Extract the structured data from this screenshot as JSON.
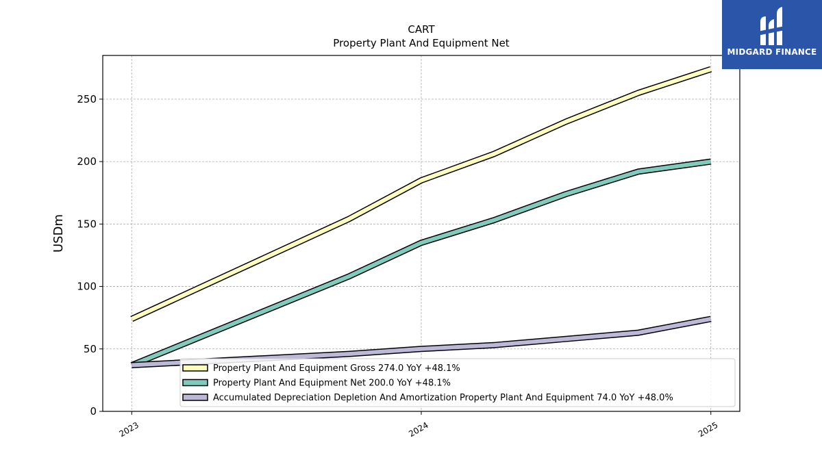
{
  "chart_data": {
    "type": "line",
    "title": "CART",
    "subtitle": "Property Plant And Equipment Net",
    "ylabel": "USDm",
    "xlabel": "",
    "ylim": [
      0,
      285
    ],
    "xlim": [
      2022.9,
      2025.1
    ],
    "yticks": [
      0,
      50,
      100,
      150,
      200,
      250
    ],
    "xticks": [
      {
        "value": 2023,
        "label": "2023"
      },
      {
        "value": 2024,
        "label": "2024"
      },
      {
        "value": 2025,
        "label": "2025"
      }
    ],
    "grid": true,
    "legend_position": "lower-right",
    "series": [
      {
        "name": "Property Plant And Equipment Gross",
        "legend": "Property Plant And Equipment Gross  274.0 YoY +48.1%",
        "color": "#ffffbf",
        "points": [
          [
            2023.0,
            74
          ],
          [
            2023.75,
            154
          ],
          [
            2024.0,
            185
          ],
          [
            2024.25,
            206
          ],
          [
            2024.5,
            232
          ],
          [
            2024.75,
            255
          ],
          [
            2025.0,
            274
          ]
        ]
      },
      {
        "name": "Property Plant And Equipment Net",
        "legend": "Property Plant And Equipment Net  200.0 YoY +48.1%",
        "color": "#80cbbc",
        "points": [
          [
            2023.0,
            37
          ],
          [
            2023.75,
            108
          ],
          [
            2024.0,
            135
          ],
          [
            2024.25,
            153
          ],
          [
            2024.5,
            174
          ],
          [
            2024.75,
            192
          ],
          [
            2025.0,
            200
          ]
        ]
      },
      {
        "name": "Accumulated Depreciation Depletion And Amortization Property Plant And Equipment",
        "legend": "Accumulated Depreciation Depletion And Amortization Property Plant And Equipment  74.0 YoY +48.0%",
        "color": "#bcb8d8",
        "points": [
          [
            2023.0,
            37
          ],
          [
            2023.75,
            46
          ],
          [
            2024.0,
            50
          ],
          [
            2024.25,
            53
          ],
          [
            2024.5,
            58
          ],
          [
            2024.75,
            63
          ],
          [
            2025.0,
            74
          ]
        ]
      }
    ]
  },
  "brand": {
    "name": "MIDGARD FINANCE",
    "color": "#2a55a8",
    "icon": "midgard-logo-icon"
  }
}
